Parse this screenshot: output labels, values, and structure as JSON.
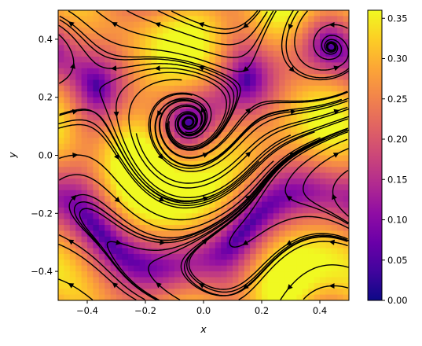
{
  "chart_data": {
    "type": "heatmap",
    "title": "",
    "xlabel": "x",
    "ylabel": "y",
    "xlim": [
      -0.5,
      0.5
    ],
    "ylim": [
      -0.5,
      0.5
    ],
    "x_ticks": [
      "−0.4",
      "−0.2",
      "0.0",
      "0.2",
      "0.4"
    ],
    "x_tick_values": [
      -0.4,
      -0.2,
      0.0,
      0.2,
      0.4
    ],
    "y_ticks": [
      "−0.4",
      "−0.2",
      "0.0",
      "0.2",
      "0.4"
    ],
    "y_tick_values": [
      -0.4,
      -0.2,
      0.0,
      0.2,
      0.4
    ],
    "colormap": "plasma",
    "colorbar": {
      "range": [
        0.0,
        0.36
      ],
      "ticks": [
        "0.00",
        "0.05",
        "0.10",
        "0.15",
        "0.20",
        "0.25",
        "0.30",
        "0.35"
      ],
      "tick_values": [
        0.0,
        0.05,
        0.1,
        0.15,
        0.2,
        0.25,
        0.3,
        0.35
      ]
    },
    "overlay": "streamlines",
    "streamline_color": "#000000",
    "grid": false
  }
}
